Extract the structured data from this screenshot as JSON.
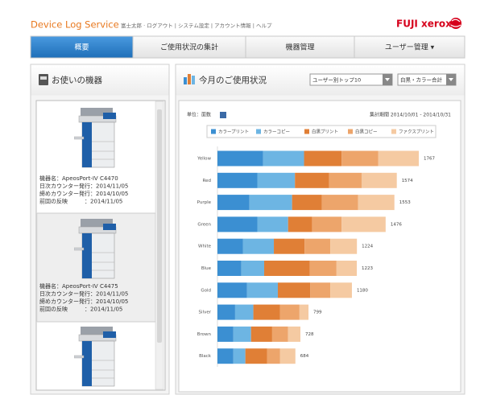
{
  "header": {
    "service_name": "Device Log Service",
    "user_links": "富士太郎 · ログアウト | システム設定 | アカウント情報 | ヘルプ",
    "logo": "FUJI xerox"
  },
  "nav": {
    "tabs": [
      "概要",
      "ご使用状況の集計",
      "機器管理",
      "ユーザー管理 ▾"
    ],
    "active": 0
  },
  "devices_panel": {
    "title": "お使いの機器",
    "devices": [
      {
        "lines": [
          "機器名：ApeosPort-IV C4470",
          "日次カウンター発行：2014/11/05",
          "締めカウンター発行：2014/10/05",
          "前回の反映　　　：2014/11/05"
        ]
      },
      {
        "lines": [
          "機器名：ApeosPort-IV C4475",
          "日次カウンター発行：2014/11/05",
          "締めカウンター発行：2014/10/05",
          "前回の反映　　　：2014/11/05"
        ]
      },
      {
        "lines": []
      }
    ]
  },
  "usage_panel": {
    "title": "今月のご使用状況",
    "selects": [
      "ユーザー別トップ10",
      "白黒・カラー合計"
    ]
  },
  "chart_data": {
    "type": "bar",
    "orientation": "horizontal",
    "stacked": true,
    "unit": "単位：面数",
    "period": "集計期間 2014/10/01 - 2014/10/31",
    "categories": [
      "Yellow",
      "Red",
      "Purple",
      "Green",
      "White",
      "Blue",
      "Gold",
      "Silver",
      "Brown",
      "Black"
    ],
    "series": [
      {
        "name": "カラープリント",
        "color": "#3b8fd2",
        "values": [
          400,
          350,
          280,
          350,
          225,
          210,
          260,
          155,
          140,
          140
        ]
      },
      {
        "name": "カラーコピー",
        "color": "#6db5e3",
        "values": [
          360,
          330,
          375,
          270,
          270,
          200,
          270,
          160,
          155,
          105
        ]
      },
      {
        "name": "白黒プリント",
        "color": "#e07f36",
        "values": [
          330,
          300,
          260,
          210,
          270,
          400,
          285,
          235,
          185,
          190
        ]
      },
      {
        "name": "白黒コピー",
        "color": "#eda56b",
        "values": [
          320,
          285,
          320,
          260,
          225,
          235,
          175,
          170,
          140,
          115
        ]
      },
      {
        "name": "ファクスプリント",
        "color": "#f5caa2",
        "values": [
          357,
          309,
          318,
          386,
          234,
          178,
          190,
          79,
          108,
          134
        ]
      }
    ],
    "totals": [
      1767,
      1574,
      1553,
      1476,
      1224,
      1223,
      1180,
      799,
      728,
      684
    ]
  }
}
